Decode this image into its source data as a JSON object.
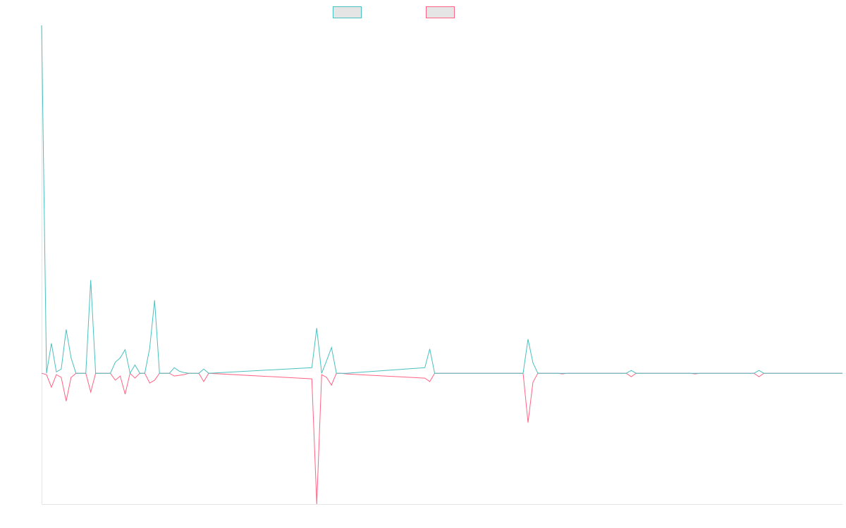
{
  "chart_data": {
    "type": "line",
    "x": [
      0,
      1,
      2,
      3,
      4,
      5,
      6,
      7,
      8,
      9,
      10,
      11,
      12,
      13,
      14,
      15,
      16,
      17,
      18,
      19,
      20,
      21,
      22,
      23,
      24,
      25,
      26,
      27,
      28,
      29,
      30,
      31,
      32,
      33,
      34,
      55,
      56,
      57,
      58,
      59,
      60,
      61,
      62,
      78,
      79,
      80,
      98,
      99,
      100,
      101,
      105,
      106,
      107,
      119,
      120,
      121,
      132,
      133,
      134,
      145,
      146,
      147,
      163
    ],
    "xlim": [
      0,
      163
    ],
    "ylim": [
      -1.88,
      5
    ],
    "series": [
      {
        "color": "#4bc0c0",
        "values": [
          5.0,
          0,
          0.43,
          0.02,
          0.06,
          0.63,
          0.22,
          0,
          0,
          0,
          1.34,
          0,
          0,
          0,
          0,
          0.16,
          0.22,
          0.34,
          0,
          0.12,
          0,
          0,
          0.36,
          1.05,
          0,
          0,
          0,
          0.08,
          0.03,
          0.01,
          0,
          0,
          0,
          0.06,
          0,
          0.08,
          0.65,
          0,
          0.18,
          0.37,
          0,
          0,
          0,
          0.08,
          0.35,
          0,
          0,
          0.49,
          0.15,
          0,
          0,
          0,
          0,
          0,
          0.04,
          0,
          0,
          0,
          0,
          0,
          0.04,
          0,
          0
        ]
      },
      {
        "color": "#ff6384",
        "values": [
          0,
          -0.02,
          -0.2,
          -0.02,
          -0.06,
          -0.4,
          -0.06,
          0,
          0,
          0,
          -0.27,
          0,
          0,
          0,
          0,
          -0.1,
          -0.04,
          -0.3,
          0,
          -0.07,
          0,
          0,
          -0.14,
          -0.1,
          0,
          0,
          0,
          -0.04,
          -0.03,
          -0.02,
          0,
          0,
          0,
          -0.12,
          0,
          -0.08,
          -1.88,
          -0.02,
          -0.06,
          -0.17,
          0,
          0,
          -0.01,
          -0.07,
          -0.12,
          0,
          0,
          -0.71,
          -0.13,
          0,
          0,
          -0.01,
          0,
          0,
          -0.05,
          0,
          0,
          -0.01,
          0,
          0,
          -0.05,
          0,
          0
        ]
      }
    ]
  }
}
